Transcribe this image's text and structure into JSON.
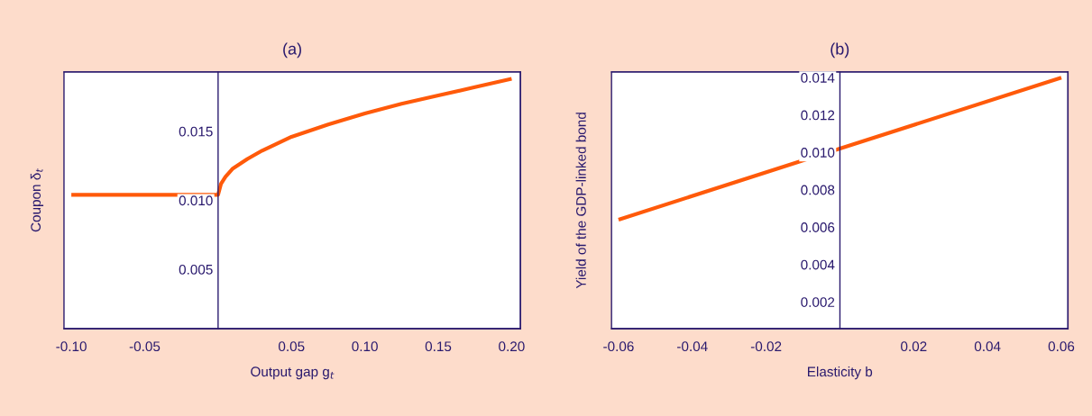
{
  "chart_data": [
    {
      "type": "line",
      "title": "(a)",
      "xlabel": "Output gap g$_{t}$",
      "ylabel": "Coupon δ$_{t}$",
      "grid": false,
      "marker": "none",
      "line_style": "solid",
      "x": [
        -0.1,
        0,
        0.002,
        0.005,
        0.01,
        0.02,
        0.03,
        0.05,
        0.075,
        0.1,
        0.125,
        0.15,
        0.175,
        0.2
      ],
      "series": [
        {
          "color": "#ff5a0a",
          "values": [
            0.0104,
            0.0104,
            0.0112,
            0.0117,
            0.0123,
            0.013,
            0.0136,
            0.0146,
            0.0155,
            0.0163,
            0.017,
            0.0176,
            0.0182,
            0.0188
          ]
        }
      ],
      "xlim": [
        -0.105,
        0.206
      ],
      "ylim": [
        0.0007,
        0.0193
      ],
      "xticks": [
        {
          "value": -0.1,
          "label": "-0.10"
        },
        {
          "value": -0.05,
          "label": "-0.05"
        },
        0.05,
        {
          "value": 0.1,
          "label": "0.10"
        },
        0.15,
        {
          "value": 0.2,
          "label": "0.20"
        }
      ],
      "yticks": [
        0.005,
        {
          "value": 0.01,
          "label": "0.010"
        },
        0.015
      ]
    },
    {
      "type": "line",
      "title": "(b)",
      "xlabel": "Elasticity b",
      "ylabel": "Yield of the GDP-linked bond",
      "grid": false,
      "marker": "none",
      "line_style": "solid",
      "x": [
        -0.06,
        0,
        0.06
      ],
      "series": [
        {
          "color": "#ff5a0a",
          "values": [
            0.0064,
            0.0102,
            0.014
          ]
        }
      ],
      "xlim": [
        -0.0619,
        0.0618
      ],
      "ylim": [
        0.00057,
        0.0143
      ],
      "xticks": [
        -0.06,
        -0.04,
        -0.02,
        0.02,
        0.04,
        0.06
      ],
      "yticks": [
        0.002,
        0.004,
        0.006,
        0.008,
        {
          "value": 0.01,
          "label": "0.010"
        },
        0.012,
        0.014
      ]
    }
  ]
}
